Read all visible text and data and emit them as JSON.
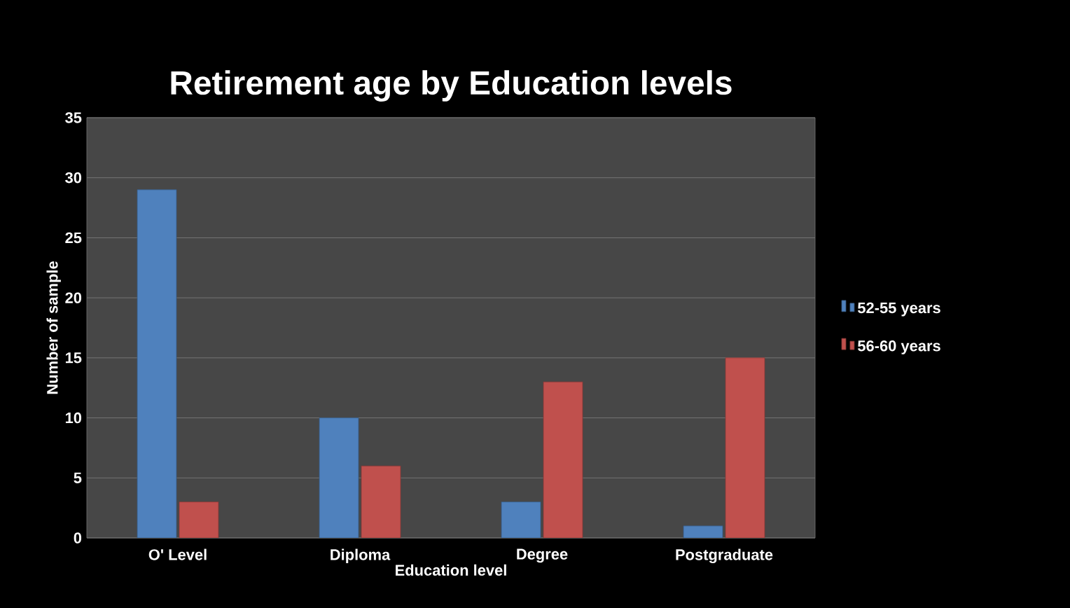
{
  "chart_data": {
    "type": "bar",
    "title": "Retirement age by Education levels",
    "xlabel": "Education level",
    "ylabel": "Number of sample",
    "categories": [
      "O' Level",
      "Diploma",
      "Degree",
      "Postgraduate"
    ],
    "series": [
      {
        "name": "52-55 years",
        "color": "#4f81bd",
        "values": [
          29,
          10,
          3,
          1
        ]
      },
      {
        "name": "56-60 years",
        "color": "#c0504d",
        "values": [
          3,
          6,
          13,
          15
        ]
      }
    ],
    "ylim": [
      0,
      35
    ],
    "yticks": [
      0,
      5,
      10,
      15,
      20,
      25,
      30,
      35
    ],
    "grid": "y",
    "legend": "right"
  }
}
